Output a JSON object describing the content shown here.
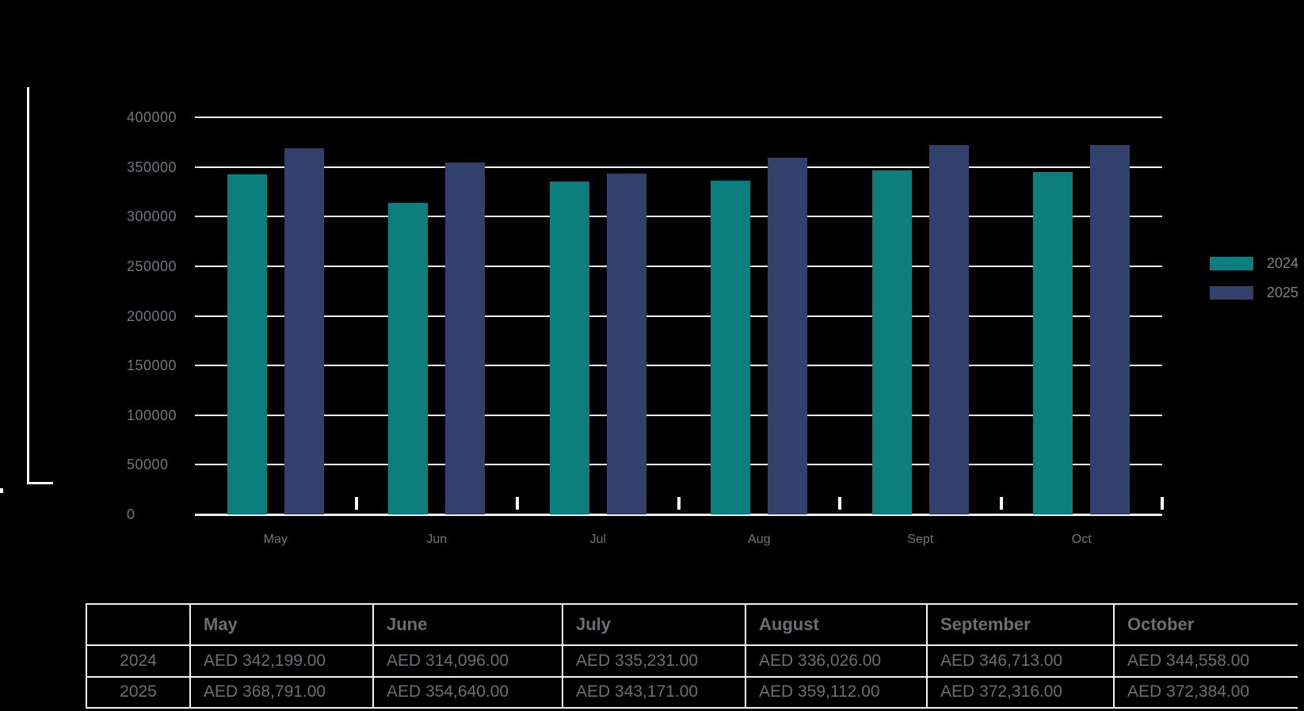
{
  "colors": {
    "background": "#000000",
    "series_2024": "#0b7e7d",
    "series_2025": "#32406c",
    "gridline": "#f2f2f2",
    "axis_text": "#74747c",
    "legend_text": "#7f7f85",
    "table_text": "#6d6d73",
    "table_border": "#f2f2f2",
    "bracket": "#ffffff"
  },
  "chart_data": {
    "type": "bar",
    "categories": [
      "May",
      "Jun",
      "Jul",
      "Aug",
      "Sept",
      "Oct"
    ],
    "series": [
      {
        "name": "2024",
        "color": "#0b7e7d",
        "values": [
          342199,
          314096,
          335231,
          336026,
          346713,
          344558
        ]
      },
      {
        "name": "2025",
        "color": "#32406c",
        "values": [
          368791,
          354640,
          343171,
          359112,
          372316,
          372384
        ]
      }
    ],
    "title": "",
    "xlabel": "",
    "ylabel": "",
    "ylim": [
      0,
      400000
    ],
    "ytick_step": 50000,
    "ytick_labels_top_to_bottom": [
      "400000",
      "350000",
      "300000",
      "250000",
      "200000",
      "150000",
      "100000",
      "50000",
      "0"
    ],
    "grid": "horizontal",
    "legend_position": "right"
  },
  "legend": {
    "items": [
      {
        "label": "2024",
        "color": "#0b7e7d"
      },
      {
        "label": "2025",
        "color": "#32406c"
      }
    ]
  },
  "table": {
    "columns": [
      "",
      "May",
      "June",
      "July",
      "August",
      "September",
      "October"
    ],
    "rows": [
      {
        "label": "2024",
        "values": [
          "AED 342,199.00",
          "AED 314,096.00",
          "AED 335,231.00",
          "AED 336,026.00",
          "AED 346,713.00",
          "AED 344,558.00"
        ]
      },
      {
        "label": "2025",
        "values": [
          "AED 368,791.00",
          "AED 354,640.00",
          "AED 343,171.00",
          "AED 359,112.00",
          "AED 372,316.00",
          "AED 372,384.00"
        ]
      }
    ]
  }
}
